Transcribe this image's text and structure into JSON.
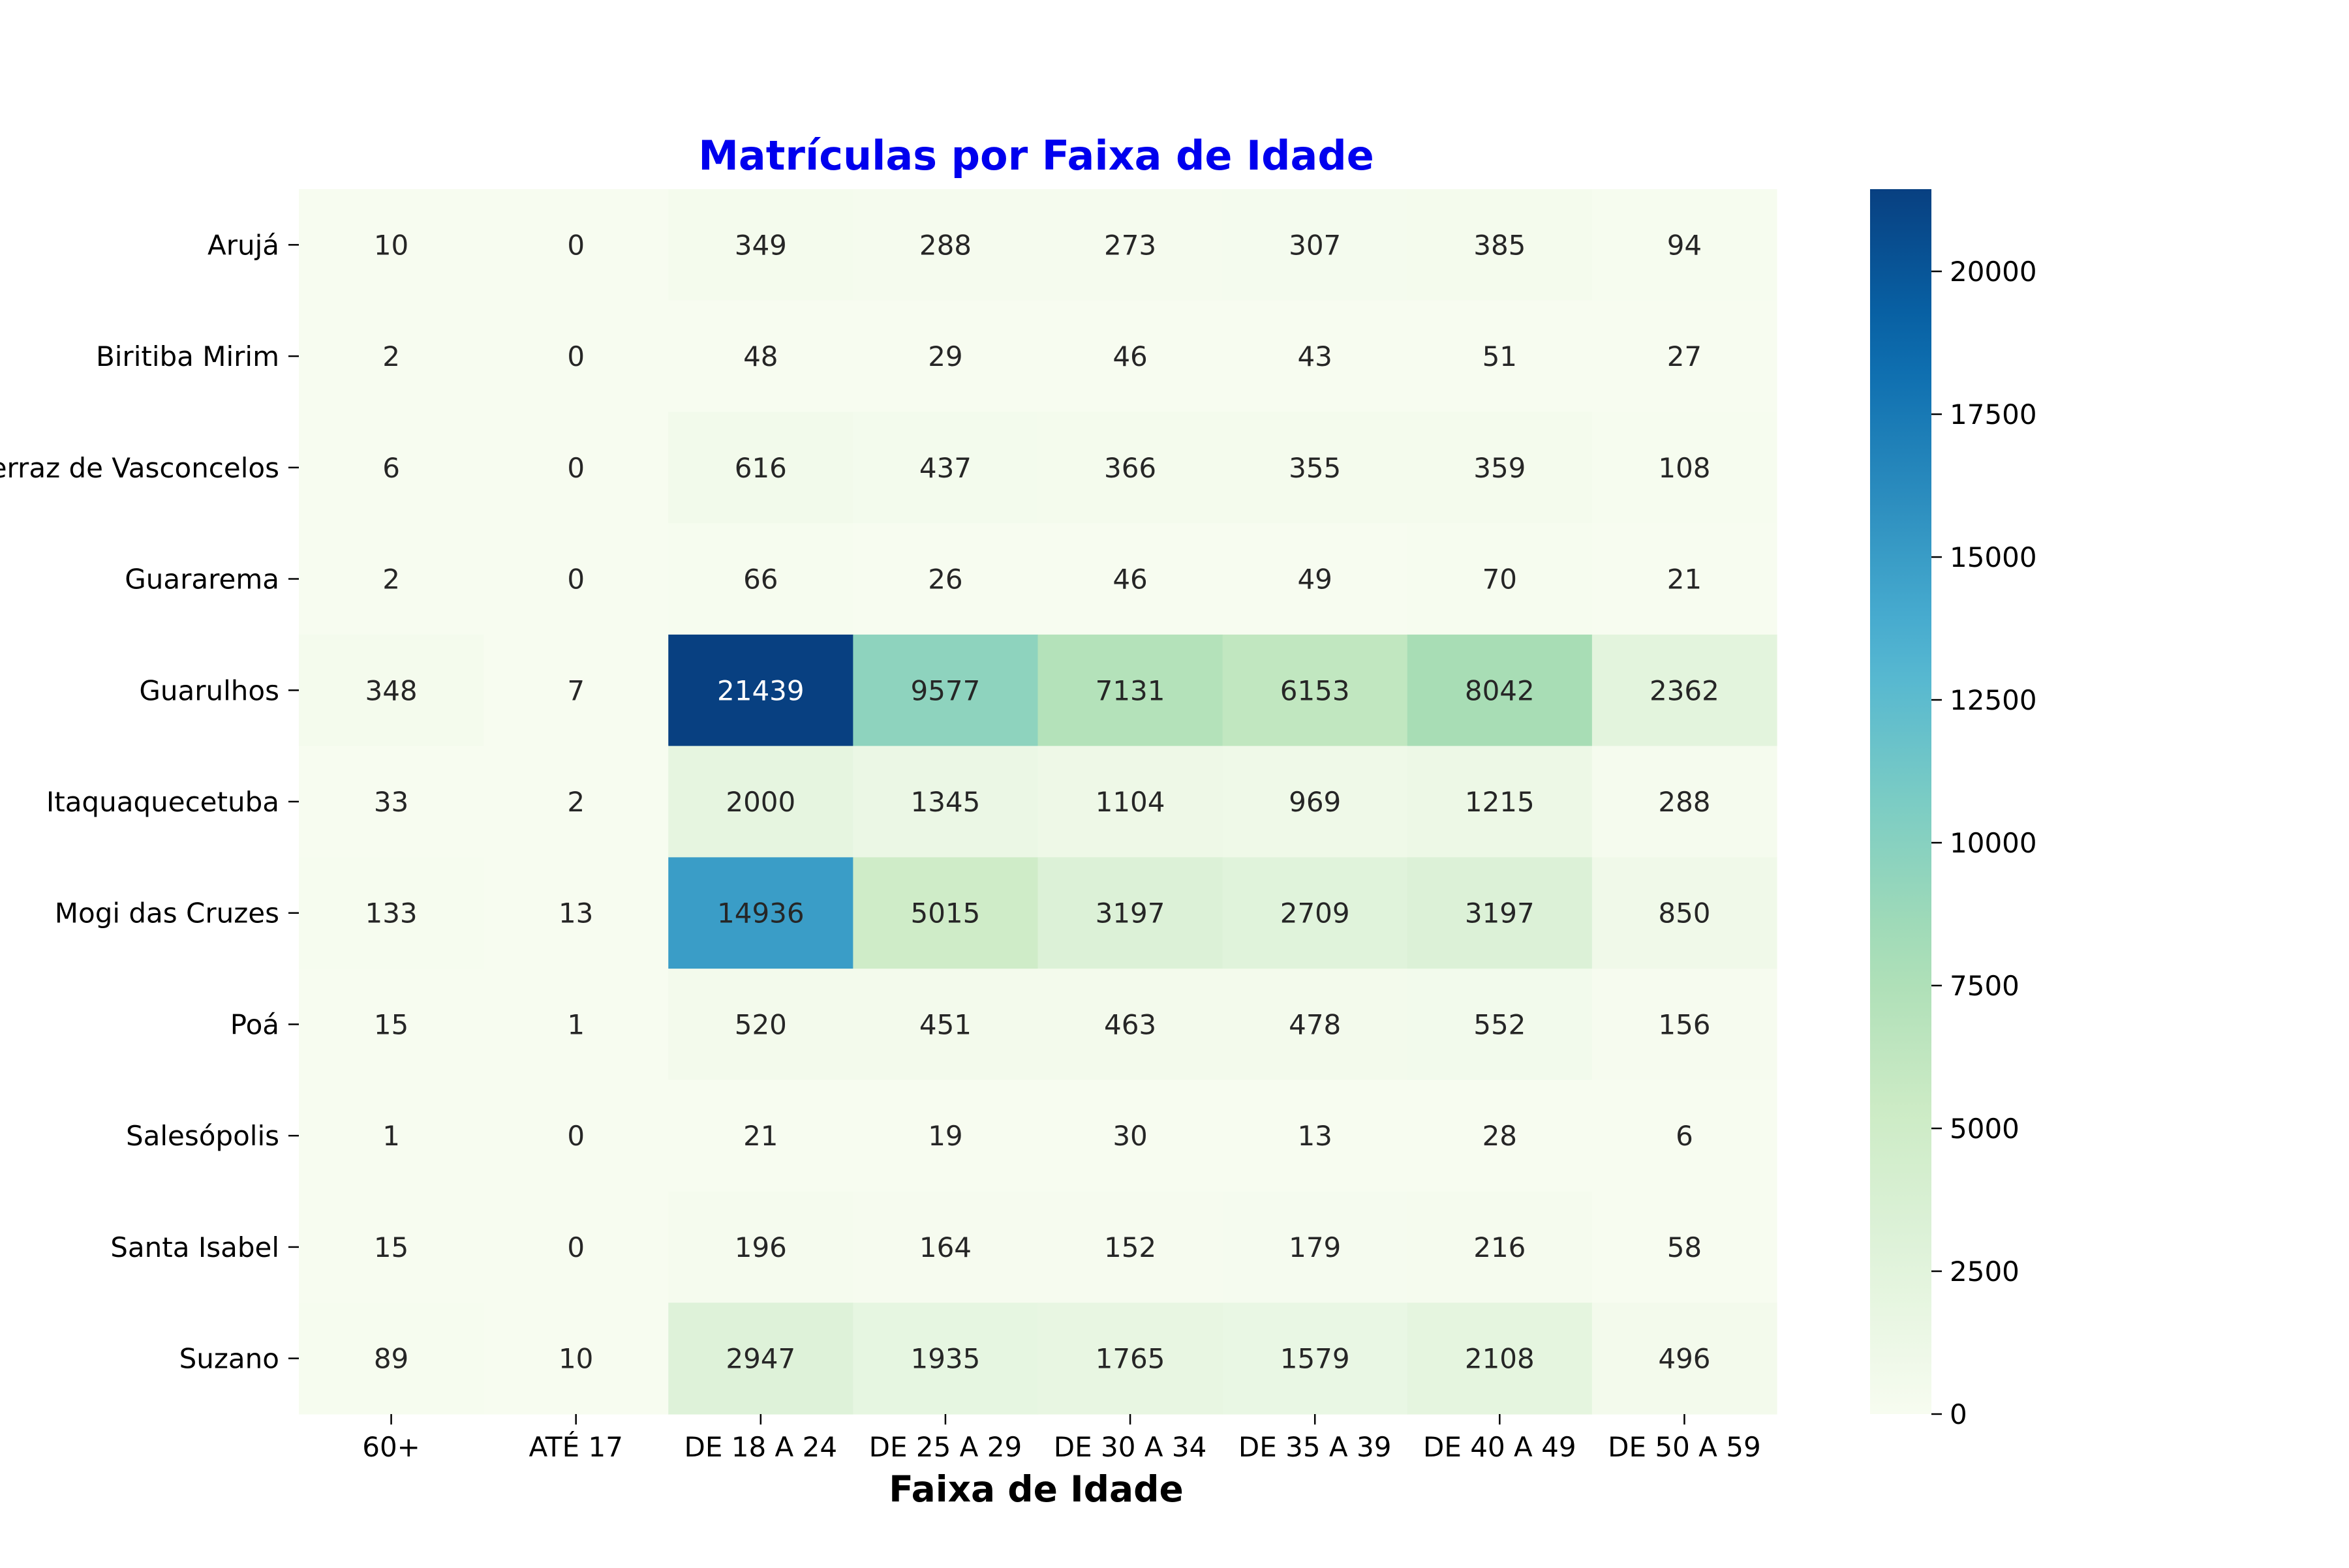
{
  "chart_data": {
    "type": "heatmap",
    "title": "Matrículas por Faixa de Idade",
    "xlabel": "Faixa de Idade",
    "ylabel": "",
    "x_categories": [
      "60+",
      "ATÉ 17",
      "DE 18 A 24",
      "DE 25 A 29",
      "DE 30 A 34",
      "DE 35 A 39",
      "DE 40 A 49",
      "DE 50 A 59"
    ],
    "y_categories": [
      "Arujá",
      "Biritiba Mirim",
      "Ferraz de Vasconcelos",
      "Guararema",
      "Guarulhos",
      "Itaquaquecetuba",
      "Mogi das Cruzes",
      "Poá",
      "Salesópolis",
      "Santa Isabel",
      "Suzano"
    ],
    "values": [
      [
        10,
        0,
        349,
        288,
        273,
        307,
        385,
        94
      ],
      [
        2,
        0,
        48,
        29,
        46,
        43,
        51,
        27
      ],
      [
        6,
        0,
        616,
        437,
        366,
        355,
        359,
        108
      ],
      [
        2,
        0,
        66,
        26,
        46,
        49,
        70,
        21
      ],
      [
        348,
        7,
        21439,
        9577,
        7131,
        6153,
        8042,
        2362
      ],
      [
        33,
        2,
        2000,
        1345,
        1104,
        969,
        1215,
        288
      ],
      [
        133,
        13,
        14936,
        5015,
        3197,
        2709,
        3197,
        850
      ],
      [
        15,
        1,
        520,
        451,
        463,
        478,
        552,
        156
      ],
      [
        1,
        0,
        21,
        19,
        30,
        13,
        28,
        6
      ],
      [
        15,
        0,
        196,
        164,
        152,
        179,
        216,
        58
      ],
      [
        89,
        10,
        2947,
        1935,
        1765,
        1579,
        2108,
        496
      ]
    ],
    "colorbar": {
      "colormap": "GnBu",
      "range": [
        0,
        21439
      ],
      "ticks": [
        0,
        2500,
        5000,
        7500,
        10000,
        12500,
        15000,
        17500,
        20000
      ]
    },
    "title_color": "#0000ee"
  }
}
